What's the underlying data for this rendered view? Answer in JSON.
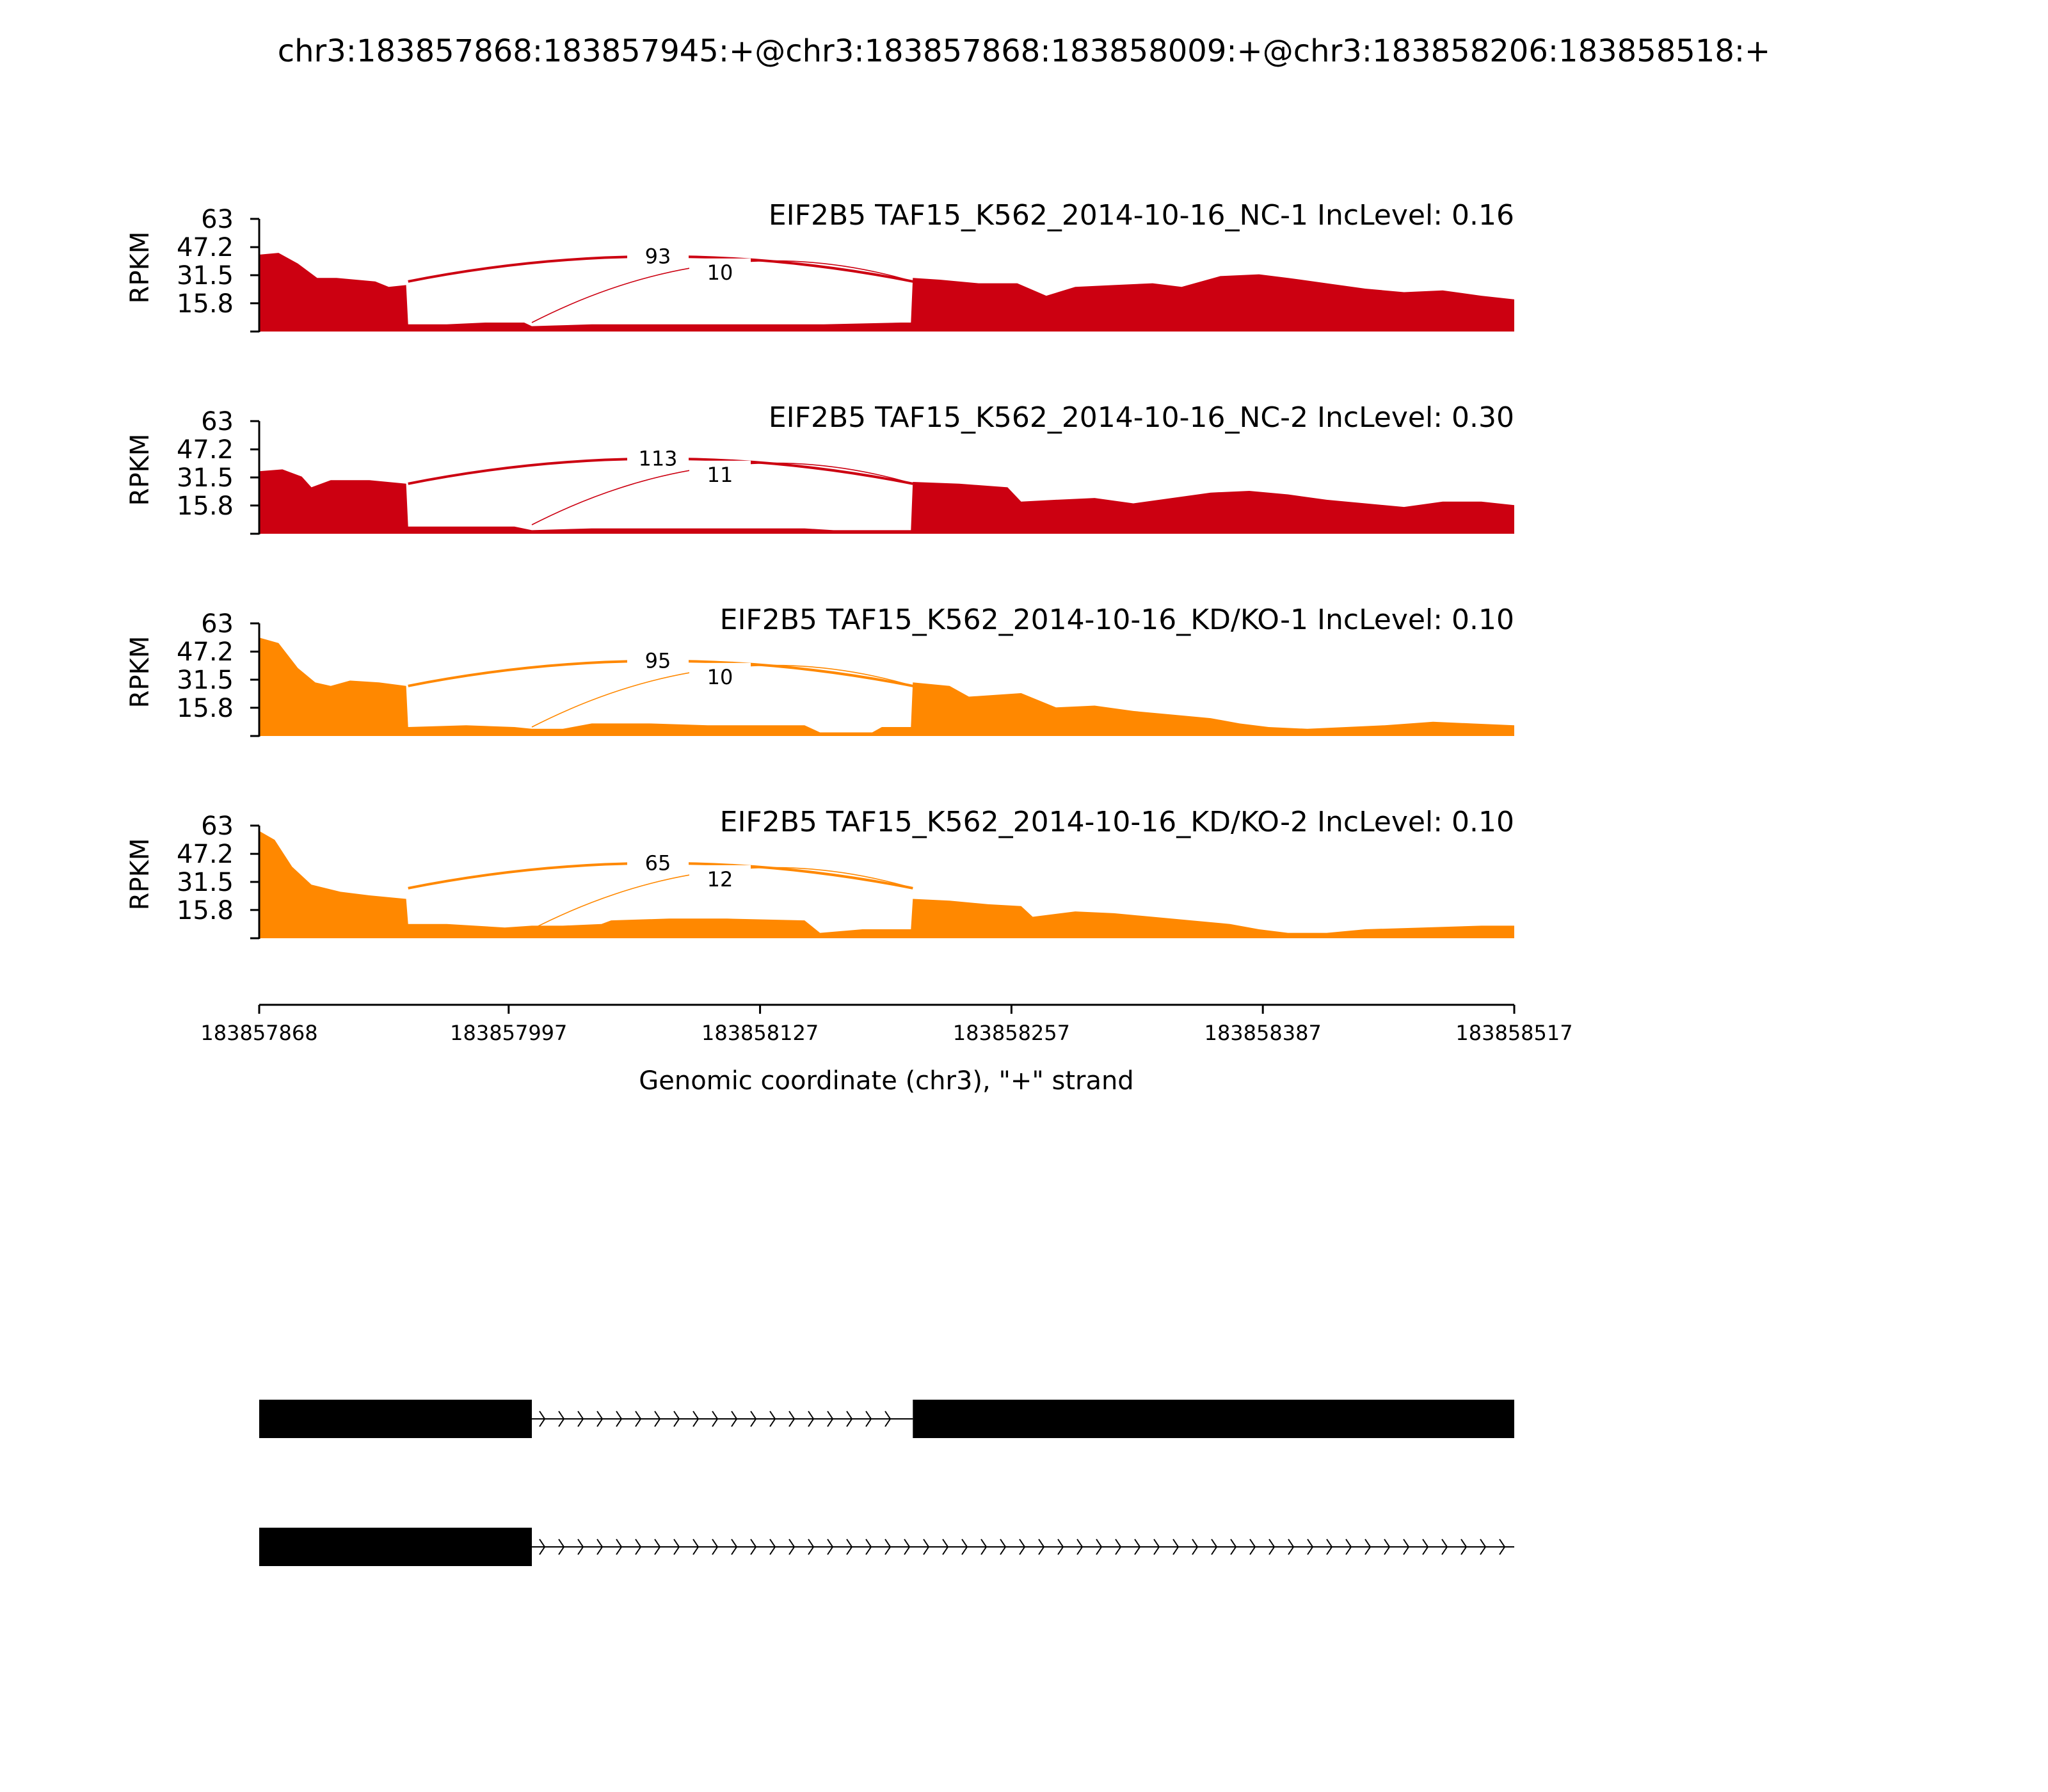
{
  "title": "chr3:183857868:183857945:+@chr3:183857868:183858009:+@chr3:183858206:183858518:+",
  "chart_data": {
    "type": "area",
    "x_axis": {
      "label": "Genomic coordinate (chr3), \"+\" strand",
      "range": [
        183857868,
        183858517
      ],
      "ticks": [
        "183857868",
        "183857997",
        "183858127",
        "183858257",
        "183858387",
        "183858517"
      ]
    },
    "y_axis": {
      "label": "RPKM",
      "range": [
        0,
        63
      ],
      "ticks": [
        "63",
        "47.2",
        "31.5",
        "15.8"
      ]
    },
    "panels": [
      {
        "title": "EIF2B5 TAF15_K562_2014-10-16_NC-1 IncLevel: 0.16",
        "color": "#cc0011",
        "coverage": [
          [
            183857868,
            43
          ],
          [
            183857878,
            44
          ],
          [
            183857888,
            38
          ],
          [
            183857898,
            30
          ],
          [
            183857908,
            30
          ],
          [
            183857918,
            29
          ],
          [
            183857928,
            28
          ],
          [
            183857935,
            25
          ],
          [
            183857944,
            26
          ],
          [
            183857945,
            4
          ],
          [
            183857965,
            4
          ],
          [
            183857985,
            5
          ],
          [
            183858005,
            5
          ],
          [
            183858009,
            3
          ],
          [
            183858040,
            4
          ],
          [
            183858080,
            4
          ],
          [
            183858120,
            4
          ],
          [
            183858160,
            4
          ],
          [
            183858200,
            5
          ],
          [
            183858205,
            5
          ],
          [
            183858206,
            30
          ],
          [
            183858220,
            29
          ],
          [
            183858240,
            27
          ],
          [
            183858260,
            27
          ],
          [
            183858275,
            20
          ],
          [
            183858290,
            25
          ],
          [
            183858310,
            26
          ],
          [
            183858330,
            27
          ],
          [
            183858345,
            25
          ],
          [
            183858365,
            31
          ],
          [
            183858385,
            32
          ],
          [
            183858400,
            30
          ],
          [
            183858420,
            27
          ],
          [
            183858440,
            24
          ],
          [
            183858460,
            22
          ],
          [
            183858480,
            23
          ],
          [
            183858500,
            20
          ],
          [
            183858517,
            18
          ]
        ],
        "junctions": [
          {
            "from": 183857945,
            "to": 183858206,
            "reads": "93"
          },
          {
            "from": 183858009,
            "to": 183858206,
            "reads": "10"
          }
        ]
      },
      {
        "title": "EIF2B5 TAF15_K562_2014-10-16_NC-2 IncLevel: 0.30",
        "color": "#cc0011",
        "coverage": [
          [
            183857868,
            35
          ],
          [
            183857880,
            36
          ],
          [
            183857890,
            32
          ],
          [
            183857895,
            26
          ],
          [
            183857905,
            30
          ],
          [
            183857925,
            30
          ],
          [
            183857944,
            28
          ],
          [
            183857945,
            4
          ],
          [
            183857975,
            4
          ],
          [
            183858000,
            4
          ],
          [
            183858009,
            2
          ],
          [
            183858040,
            3
          ],
          [
            183858080,
            3
          ],
          [
            183858120,
            3
          ],
          [
            183858150,
            3
          ],
          [
            183858165,
            2
          ],
          [
            183858205,
            2
          ],
          [
            183858206,
            29
          ],
          [
            183858230,
            28
          ],
          [
            183858255,
            26
          ],
          [
            183858262,
            18
          ],
          [
            183858280,
            19
          ],
          [
            183858300,
            20
          ],
          [
            183858320,
            17
          ],
          [
            183858340,
            20
          ],
          [
            183858360,
            23
          ],
          [
            183858380,
            24
          ],
          [
            183858400,
            22
          ],
          [
            183858420,
            19
          ],
          [
            183858440,
            17
          ],
          [
            183858460,
            15
          ],
          [
            183858480,
            18
          ],
          [
            183858500,
            18
          ],
          [
            183858517,
            16
          ]
        ],
        "junctions": [
          {
            "from": 183857945,
            "to": 183858206,
            "reads": "113"
          },
          {
            "from": 183858009,
            "to": 183858206,
            "reads": "11"
          }
        ]
      },
      {
        "title": "EIF2B5 TAF15_K562_2014-10-16_KD/KO-1 IncLevel: 0.10",
        "color": "#ff8800",
        "coverage": [
          [
            183857868,
            55
          ],
          [
            183857878,
            52
          ],
          [
            183857888,
            38
          ],
          [
            183857897,
            30
          ],
          [
            183857905,
            28
          ],
          [
            183857915,
            31
          ],
          [
            183857930,
            30
          ],
          [
            183857944,
            28
          ],
          [
            183857945,
            5
          ],
          [
            183857975,
            6
          ],
          [
            183858000,
            5
          ],
          [
            183858009,
            4
          ],
          [
            183858025,
            4
          ],
          [
            183858040,
            7
          ],
          [
            183858070,
            7
          ],
          [
            183858100,
            6
          ],
          [
            183858150,
            6
          ],
          [
            183858158,
            2
          ],
          [
            183858185,
            2
          ],
          [
            183858190,
            5
          ],
          [
            183858205,
            5
          ],
          [
            183858206,
            30
          ],
          [
            183858225,
            28
          ],
          [
            183858235,
            22
          ],
          [
            183858262,
            24
          ],
          [
            183858280,
            16
          ],
          [
            183858300,
            17
          ],
          [
            183858320,
            14
          ],
          [
            183858340,
            12
          ],
          [
            183858360,
            10
          ],
          [
            183858375,
            7
          ],
          [
            183858390,
            5
          ],
          [
            183858410,
            4
          ],
          [
            183858430,
            5
          ],
          [
            183858450,
            6
          ],
          [
            183858475,
            8
          ],
          [
            183858495,
            7
          ],
          [
            183858517,
            6
          ]
        ],
        "junctions": [
          {
            "from": 183857945,
            "to": 183858206,
            "reads": "95"
          },
          {
            "from": 183858009,
            "to": 183858206,
            "reads": "10"
          }
        ]
      },
      {
        "title": "EIF2B5 TAF15_K562_2014-10-16_KD/KO-2 IncLevel: 0.10",
        "color": "#ff8800",
        "coverage": [
          [
            183857868,
            60
          ],
          [
            183857876,
            55
          ],
          [
            183857885,
            40
          ],
          [
            183857895,
            30
          ],
          [
            183857910,
            26
          ],
          [
            183857925,
            24
          ],
          [
            183857944,
            22
          ],
          [
            183857945,
            8
          ],
          [
            183857965,
            8
          ],
          [
            183857995,
            6
          ],
          [
            183858009,
            7
          ],
          [
            183858025,
            7
          ],
          [
            183858045,
            8
          ],
          [
            183858050,
            10
          ],
          [
            183858080,
            11
          ],
          [
            183858110,
            11
          ],
          [
            183858150,
            10
          ],
          [
            183858158,
            3
          ],
          [
            183858180,
            5
          ],
          [
            183858205,
            5
          ],
          [
            183858206,
            22
          ],
          [
            183858225,
            21
          ],
          [
            183858245,
            19
          ],
          [
            183858262,
            18
          ],
          [
            183858268,
            12
          ],
          [
            183858290,
            15
          ],
          [
            183858310,
            14
          ],
          [
            183858330,
            12
          ],
          [
            183858350,
            10
          ],
          [
            183858370,
            8
          ],
          [
            183858385,
            5
          ],
          [
            183858400,
            3
          ],
          [
            183858420,
            3
          ],
          [
            183858440,
            5
          ],
          [
            183858470,
            6
          ],
          [
            183858500,
            7
          ],
          [
            183858517,
            7
          ]
        ],
        "junctions": [
          {
            "from": 183857945,
            "to": 183858206,
            "reads": "65"
          },
          {
            "from": 183858009,
            "to": 183858206,
            "reads": "12"
          }
        ]
      }
    ],
    "isoforms": [
      {
        "exons": [
          [
            183857868,
            183858009
          ],
          [
            183858206,
            183858517
          ]
        ],
        "introns": [
          [
            183858009,
            183858206
          ]
        ]
      },
      {
        "exons": [
          [
            183857868,
            183858009
          ]
        ],
        "introns": [
          [
            183858009,
            183858517
          ]
        ]
      }
    ]
  }
}
